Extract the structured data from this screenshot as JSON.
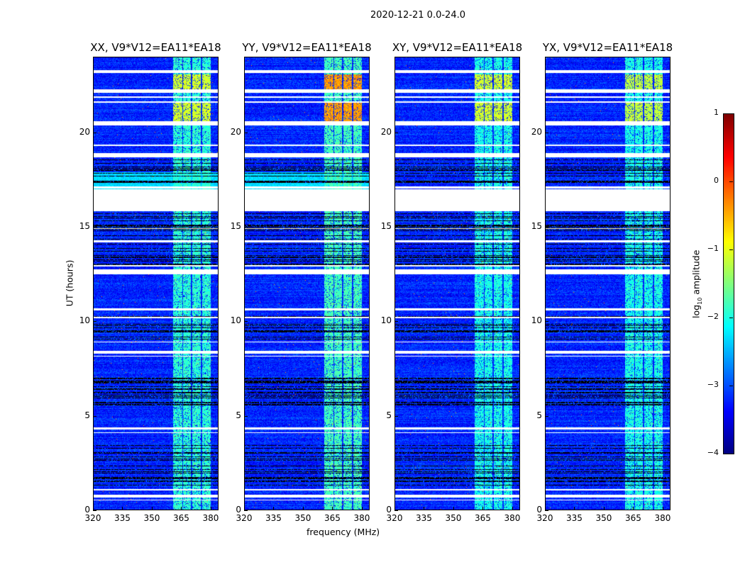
{
  "chart_data": {
    "type": "heatmap",
    "title": "2020-12-21 0.0-24.0",
    "xlabel": "frequency (MHz)",
    "ylabel": "UT (hours)",
    "xlim": [
      320,
      384
    ],
    "ylim": [
      0,
      24
    ],
    "xticks": [
      320,
      335,
      350,
      365,
      380
    ],
    "yticks": [
      0,
      5,
      10,
      15,
      20
    ],
    "colormap": "jet",
    "colorbar": {
      "label_main": "log",
      "label_sub": "10",
      "label_end": " amplitude",
      "range": [
        -4,
        1
      ],
      "ticks": [
        "1",
        "0",
        "−1",
        "−2",
        "−3",
        "−4"
      ]
    },
    "panels": [
      {
        "title": "XX, V9*V12=EA11*EA18",
        "band_level": -1.9,
        "peak_level": -1.1
      },
      {
        "title": "YY, V9*V12=EA11*EA18",
        "band_level": -1.8,
        "peak_level": -0.4
      },
      {
        "title": "XY, V9*V12=EA11*EA18",
        "band_level": -2.0,
        "peak_level": -1.1
      },
      {
        "title": "YX, V9*V12=EA11*EA18",
        "band_level": -2.0,
        "peak_level": -1.2
      }
    ],
    "rfi_band_mhz": [
      [
        360.5,
        365.2
      ],
      [
        365.8,
        369.8
      ],
      [
        370.4,
        374.8
      ],
      [
        375.4,
        380
      ]
    ],
    "flagged_ut_hours": [
      [
        23.15,
        23.3
      ],
      [
        22.1,
        22.3
      ],
      [
        21.85,
        21.9
      ],
      [
        21.6,
        21.65
      ],
      [
        20.4,
        20.6
      ],
      [
        19.3,
        19.35
      ],
      [
        18.7,
        18.9
      ],
      [
        17.05,
        17.15
      ],
      [
        15.85,
        17.0
      ],
      [
        14.9,
        14.95
      ],
      [
        14.2,
        14.3
      ],
      [
        12.9,
        13.0
      ],
      [
        12.5,
        12.75
      ],
      [
        10.6,
        10.7
      ],
      [
        10.2,
        10.25
      ],
      [
        8.9,
        8.95
      ],
      [
        8.3,
        8.45
      ],
      [
        8.15,
        8.2
      ],
      [
        4.3,
        4.4
      ],
      [
        4.1,
        4.15
      ],
      [
        1.05,
        1.15
      ],
      [
        0.7,
        0.85
      ],
      [
        0.55,
        0.6
      ]
    ],
    "dark_ut_ranges": [
      [
        17.3,
        18.6
      ],
      [
        13.0,
        16.0
      ],
      [
        9.0,
        10.5
      ],
      [
        5.5,
        7.0
      ],
      [
        1.2,
        3.6
      ]
    ]
  }
}
